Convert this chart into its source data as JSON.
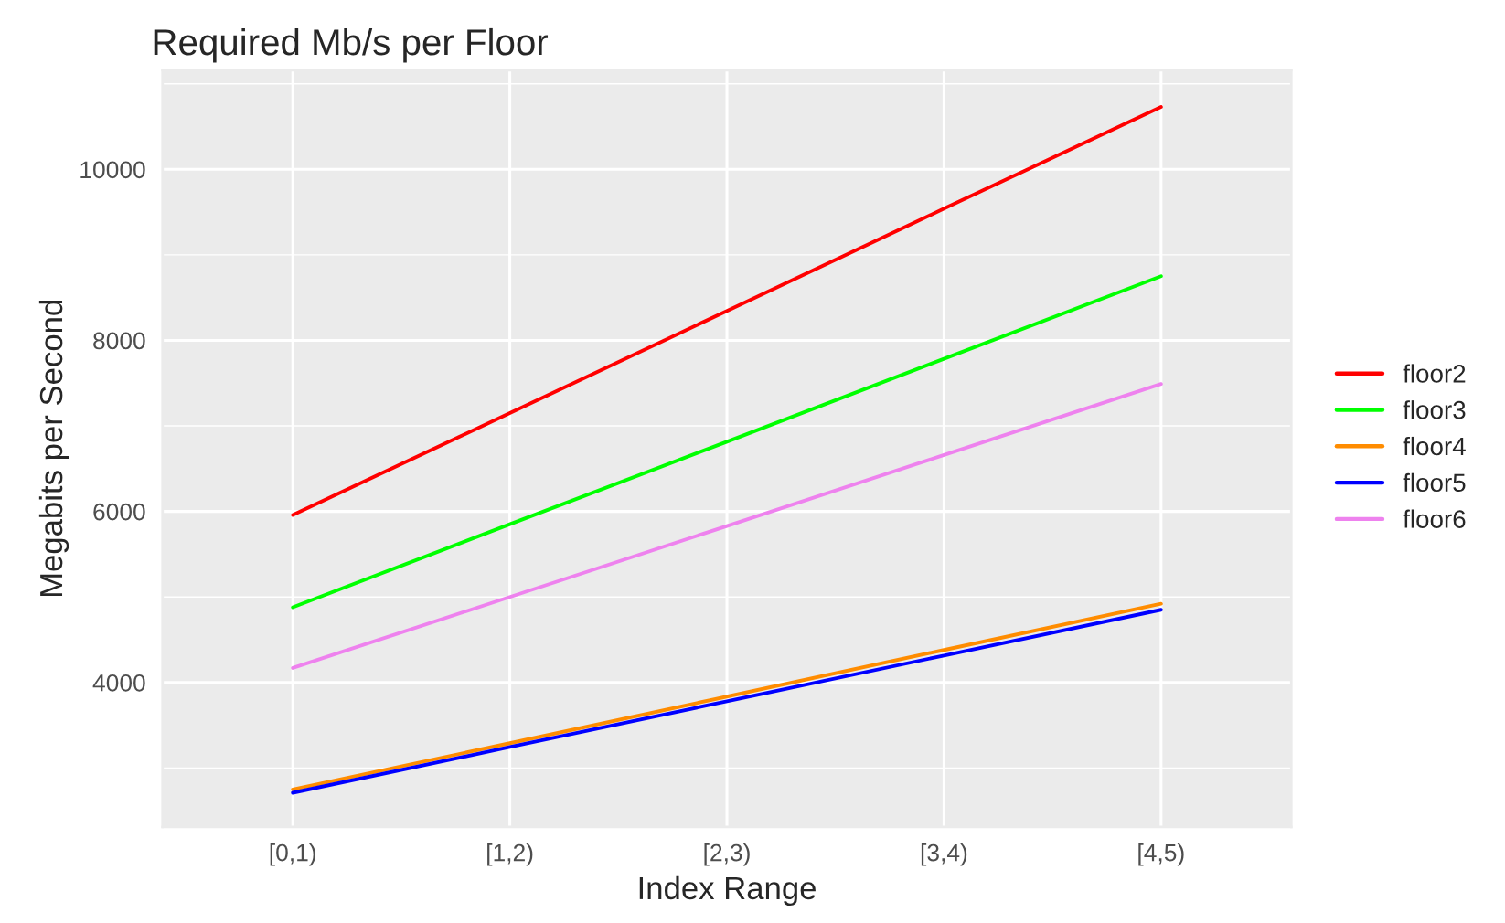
{
  "chart_data": {
    "type": "line",
    "title": "Required Mb/s per Floor",
    "xlabel": "Index Range",
    "ylabel": "Megabits per Second",
    "categories": [
      "[0,1)",
      "[1,2)",
      "[2,3)",
      "[3,4)",
      "[4,5)"
    ],
    "series": [
      {
        "name": "floor2",
        "color": "#ff0000",
        "values": [
          5960,
          7150,
          8345,
          9540,
          10730
        ]
      },
      {
        "name": "floor3",
        "color": "#00ff00",
        "values": [
          4880,
          5850,
          6815,
          7785,
          8750
        ]
      },
      {
        "name": "floor4",
        "color": "#ff8c00",
        "values": [
          2750,
          3290,
          3835,
          4380,
          4920
        ]
      },
      {
        "name": "floor5",
        "color": "#0000ff",
        "values": [
          2710,
          3245,
          3780,
          4315,
          4850
        ]
      },
      {
        "name": "floor6",
        "color": "#ee82ee",
        "values": [
          4170,
          5000,
          5830,
          6660,
          7490
        ]
      }
    ],
    "ylim": [
      2310,
      11160
    ],
    "yticks": [
      4000,
      6000,
      8000,
      10000
    ],
    "grid": true,
    "legend": "right",
    "line_style": "solid",
    "marker": "none"
  }
}
